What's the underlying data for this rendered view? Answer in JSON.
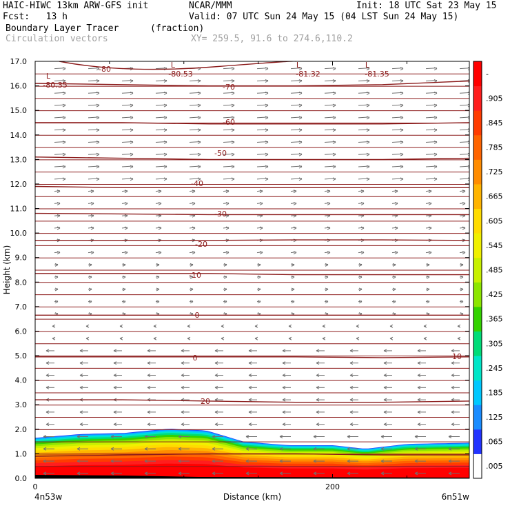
{
  "header": {
    "model": "HAIC-HIWC 13km ARW-GFS init",
    "org": "NCAR/MMM",
    "init": "Init: 18 UTC Sat 23 May 15",
    "fcst": "Fcst:   13 h",
    "valid": "Valid: 07 UTC Sun 24 May 15 (04 LST Sun 24 May 15)",
    "field": "Boundary Layer Tracer",
    "units": "(fraction)",
    "vectors": "Circulation vectors",
    "xy": "XY= 259.5, 91.6 to 274.6,110.2"
  },
  "chart_data": {
    "type": "heatmap",
    "xlabel": "Distance (km)",
    "ylabel": "Height (km)",
    "xlim": [
      0,
      292
    ],
    "ylim": [
      0,
      17
    ],
    "x_ticks": [
      "0",
      "200"
    ],
    "x_end_labels": {
      "left": "4n53w",
      "right": "6n51w"
    },
    "y_ticks": [
      "0.0",
      "1.0",
      "2.0",
      "3.0",
      "4.0",
      "5.0",
      "6.0",
      "7.0",
      "8.0",
      "9.0",
      "10.0",
      "11.0",
      "12.0",
      "13.0",
      "14.0",
      "15.0",
      "16.0",
      "17.0"
    ],
    "colorbar_labels": [
      ".005",
      ".065",
      ".125",
      ".185",
      ".245",
      ".305",
      ".365",
      ".425",
      ".485",
      ".545",
      ".605",
      ".665",
      ".725",
      ".785",
      ".845",
      ".905",
      "-"
    ],
    "colorbar_colors": [
      "#ffffff",
      "#2233ff",
      "#1a8cff",
      "#00c8ff",
      "#00e6c8",
      "#00dc78",
      "#33d200",
      "#8ce600",
      "#c8f000",
      "#f0f000",
      "#ffdc00",
      "#ffb400",
      "#ff8c00",
      "#ff6400",
      "#ff3c00",
      "#ff1e1e",
      "#ff0000"
    ],
    "tracer_top_km": [
      {
        "x": 0,
        "h": 1.65
      },
      {
        "x": 30,
        "h": 1.8
      },
      {
        "x": 60,
        "h": 1.85
      },
      {
        "x": 90,
        "h": 2.02
      },
      {
        "x": 115,
        "h": 1.95
      },
      {
        "x": 140,
        "h": 1.5
      },
      {
        "x": 170,
        "h": 1.35
      },
      {
        "x": 200,
        "h": 1.35
      },
      {
        "x": 222,
        "h": 1.2
      },
      {
        "x": 250,
        "h": 1.4
      },
      {
        "x": 292,
        "h": 1.45
      }
    ],
    "isotherm_labels": [
      "-80",
      "-70",
      "-60",
      "-50",
      "-40",
      "-30",
      "-20",
      "-10",
      "0",
      "0",
      "10",
      "20"
    ],
    "low_labels": [
      "L",
      "L",
      "L",
      "L"
    ],
    "low_values": [
      "-80.35",
      "-80.53",
      "-81.32",
      "-81.35"
    ],
    "isotherms": [
      {
        "label": "-80",
        "h": [
          16.1,
          16.05,
          16.0,
          16.0,
          16.05,
          16.2
        ]
      },
      {
        "label": "-70",
        "h": [
          14.5,
          14.5,
          14.45,
          14.45,
          14.45,
          14.5
        ]
      },
      {
        "label": "-60",
        "h": [
          13.1,
          13.05,
          13.0,
          13.0,
          13.0,
          13.05
        ]
      },
      {
        "label": "-50",
        "h": [
          11.9,
          11.85,
          11.85,
          11.85,
          11.85,
          11.85
        ]
      },
      {
        "label": "-40",
        "h": [
          10.8,
          10.78,
          10.75,
          10.75,
          10.75,
          10.75
        ]
      },
      {
        "label": "-30",
        "h": [
          9.7,
          9.7,
          9.7,
          9.72,
          9.72,
          9.7
        ]
      },
      {
        "label": "-20",
        "h": [
          8.35,
          8.35,
          8.35,
          8.3,
          8.3,
          8.3
        ]
      },
      {
        "label": "-10",
        "h": [
          6.65,
          6.65,
          6.65,
          6.65,
          6.65,
          6.65
        ]
      },
      {
        "label": "0",
        "h": [
          4.95,
          4.95,
          4.95,
          4.95,
          4.92,
          4.95
        ]
      },
      {
        "label": "10",
        "h": [
          3.2,
          3.2,
          3.15,
          3.1,
          3.1,
          3.15
        ]
      },
      {
        "label": "20",
        "h": [
          0.9,
          0.95,
          1.0,
          1.0,
          0.95,
          0.95
        ]
      }
    ]
  }
}
